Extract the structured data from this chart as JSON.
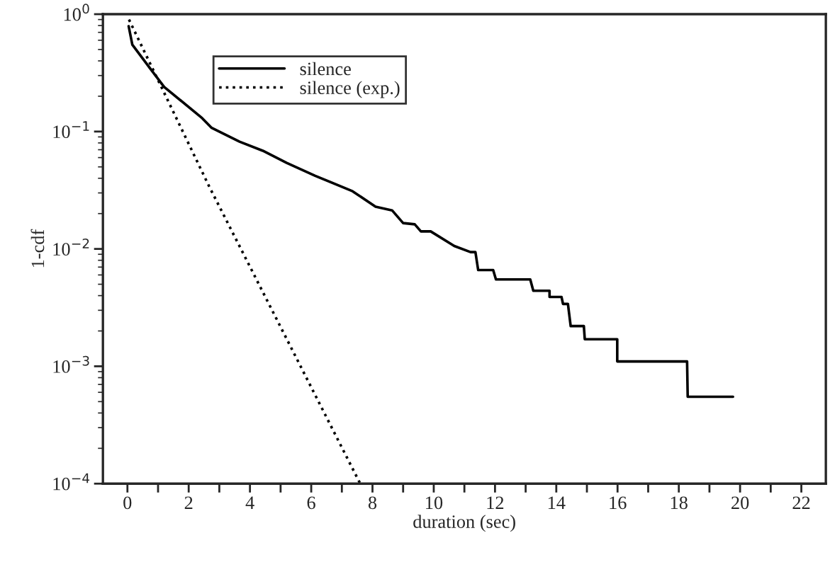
{
  "chart_data": {
    "type": "line",
    "xlabel": "duration (sec)",
    "ylabel": "1-cdf",
    "log": "y",
    "grid": false,
    "legend": "top left",
    "marker": "none",
    "xlim": [
      -0.8,
      22.8
    ],
    "xticks": [
      0,
      {
        "value": 1,
        "label": null
      },
      2,
      {
        "value": 3,
        "label": null
      },
      4,
      {
        "value": 5,
        "label": null
      },
      6,
      {
        "value": 7,
        "label": null
      },
      8,
      {
        "value": 9,
        "label": null
      },
      10,
      {
        "value": 11,
        "label": null
      },
      12,
      {
        "value": 13,
        "label": null
      },
      14,
      {
        "value": 15,
        "label": null
      },
      16,
      {
        "value": 17,
        "label": null
      },
      18,
      {
        "value": 19,
        "label": null
      },
      20,
      {
        "value": 21,
        "label": null
      },
      22
    ],
    "ylim": [
      0.0001,
      1
    ],
    "yticks": [
      {
        "value": 1,
        "label": "10$^{0}$"
      },
      {
        "value": 0.1,
        "label": "10$^{−1}$"
      },
      {
        "value": 0.01,
        "label": "10$^{−2}$"
      },
      {
        "value": 0.001,
        "label": "10$^{−3}$"
      },
      {
        "value": 0.0001,
        "label": "10$^{−4}$"
      }
    ],
    "series": [
      {
        "name": "silence",
        "color": "#000000",
        "line_style": "solid",
        "x": [
          0.04,
          0.16,
          0.74,
          1.2,
          2.44,
          2.74,
          3.66,
          4.42,
          5.2,
          6.13,
          7.35,
          8.1,
          8.64,
          9.0,
          9.38,
          9.58,
          9.9,
          10.67,
          11.2,
          11.36,
          11.45,
          11.94,
          12.03,
          13.15,
          13.25,
          13.78,
          13.78,
          14.17,
          14.22,
          14.38,
          14.42,
          14.47,
          14.9,
          14.93,
          15.99,
          15.99,
          18.27,
          18.29,
          19.77
        ],
        "values": [
          0.79,
          0.55,
          0.345,
          0.24,
          0.13,
          0.108,
          0.082,
          0.0686,
          0.054,
          0.042,
          0.031,
          0.0229,
          0.0213,
          0.0166,
          0.0162,
          0.0141,
          0.0141,
          0.0106,
          0.0094,
          0.0094,
          0.0066,
          0.0066,
          0.0055,
          0.0055,
          0.0044,
          0.0044,
          0.0039,
          0.0039,
          0.0034,
          0.0034,
          0.0028,
          0.0022,
          0.0022,
          0.0017,
          0.0017,
          0.0011,
          0.0011,
          0.00055,
          0.00055
        ]
      },
      {
        "name": "silence (exp.)",
        "color": "#000000",
        "line_style": "dotted",
        "x": [
          0.05,
          2.67,
          7.6
        ],
        "values": [
          0.9,
          0.034,
          0.0001
        ]
      }
    ]
  }
}
